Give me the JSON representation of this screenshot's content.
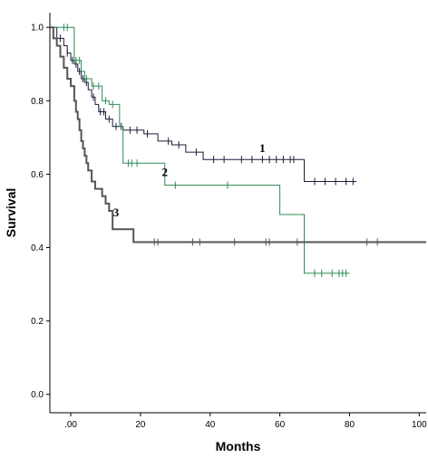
{
  "chart_data": {
    "type": "line",
    "title": "",
    "xlabel": "Months",
    "ylabel": "Survival",
    "xlim": [
      -6,
      102
    ],
    "ylim": [
      -0.05,
      1.04
    ],
    "x_ticks": [
      0,
      20,
      40,
      60,
      80,
      100
    ],
    "x_tick_labels": [
      ".00",
      "20",
      "40",
      "60",
      "80",
      "100"
    ],
    "y_ticks": [
      0.0,
      0.2,
      0.4,
      0.6,
      0.8,
      1.0
    ],
    "y_tick_labels": [
      "0.0",
      "0.2",
      "0.4",
      "0.6",
      "0.8",
      "1.0"
    ],
    "grid": false,
    "legend": "none",
    "step": true,
    "series": [
      {
        "name": "1",
        "color": "#1c1c3a",
        "line_width": 1,
        "points": [
          [
            -6,
            1.0
          ],
          [
            -4,
            0.97
          ],
          [
            -2,
            0.95
          ],
          [
            -1,
            0.93
          ],
          [
            0,
            0.91
          ],
          [
            1,
            0.9
          ],
          [
            2,
            0.88
          ],
          [
            3,
            0.86
          ],
          [
            4,
            0.85
          ],
          [
            5,
            0.83
          ],
          [
            6,
            0.81
          ],
          [
            7,
            0.79
          ],
          [
            8,
            0.77
          ],
          [
            10,
            0.75
          ],
          [
            12,
            0.73
          ],
          [
            15,
            0.72
          ],
          [
            21,
            0.71
          ],
          [
            25,
            0.69
          ],
          [
            29,
            0.68
          ],
          [
            33,
            0.66
          ],
          [
            38,
            0.64
          ],
          [
            67,
            0.58
          ],
          [
            82,
            0.58
          ]
        ],
        "censor_x": [
          -3,
          -1,
          0.5,
          1.5,
          2.5,
          3.5,
          4.5,
          6.5,
          8.5,
          9.5,
          11,
          13,
          14.5,
          17,
          19,
          22,
          28,
          31,
          36,
          41,
          44,
          49,
          52,
          55,
          57,
          59,
          61,
          63,
          64,
          70,
          73,
          76,
          79,
          81
        ]
      },
      {
        "name": "2",
        "color": "#2e8b57",
        "line_width": 1,
        "points": [
          [
            -6,
            1.0
          ],
          [
            -3,
            1.0
          ],
          [
            1,
            0.91
          ],
          [
            3,
            0.88
          ],
          [
            4,
            0.86
          ],
          [
            6,
            0.84
          ],
          [
            9,
            0.8
          ],
          [
            11,
            0.79
          ],
          [
            14,
            0.73
          ],
          [
            15,
            0.63
          ],
          [
            24,
            0.63
          ],
          [
            27,
            0.57
          ],
          [
            59,
            0.57
          ],
          [
            60,
            0.49
          ],
          [
            65,
            0.49
          ],
          [
            67,
            0.33
          ],
          [
            80,
            0.33
          ]
        ],
        "censor_x": [
          -2,
          -1,
          1.5,
          2.5,
          4.5,
          6.5,
          8,
          10,
          12,
          16.5,
          17.5,
          19,
          30,
          45,
          70,
          72,
          75,
          77,
          78,
          79
        ]
      },
      {
        "name": "3",
        "color": "#555555",
        "line_width": 2,
        "points": [
          [
            -6,
            1.0
          ],
          [
            -5,
            0.97
          ],
          [
            -4,
            0.95
          ],
          [
            -3,
            0.92
          ],
          [
            -2,
            0.89
          ],
          [
            -1,
            0.86
          ],
          [
            0,
            0.84
          ],
          [
            1,
            0.8
          ],
          [
            1.5,
            0.77
          ],
          [
            2,
            0.75
          ],
          [
            2.5,
            0.72
          ],
          [
            3,
            0.69
          ],
          [
            3.5,
            0.67
          ],
          [
            4,
            0.65
          ],
          [
            4.5,
            0.63
          ],
          [
            5,
            0.61
          ],
          [
            6,
            0.58
          ],
          [
            7,
            0.56
          ],
          [
            9,
            0.54
          ],
          [
            10,
            0.52
          ],
          [
            11,
            0.5
          ],
          [
            12,
            0.45
          ],
          [
            17,
            0.45
          ],
          [
            18,
            0.415
          ],
          [
            102,
            0.415
          ]
        ],
        "censor_x": [
          24,
          25,
          35,
          37,
          47,
          56,
          57,
          65,
          85,
          88
        ]
      }
    ],
    "annotations": [
      {
        "text": "1",
        "x": 55,
        "y": 0.66
      },
      {
        "text": "2",
        "x": 27,
        "y": 0.595
      },
      {
        "text": "3",
        "x": 13,
        "y": 0.485
      }
    ]
  }
}
